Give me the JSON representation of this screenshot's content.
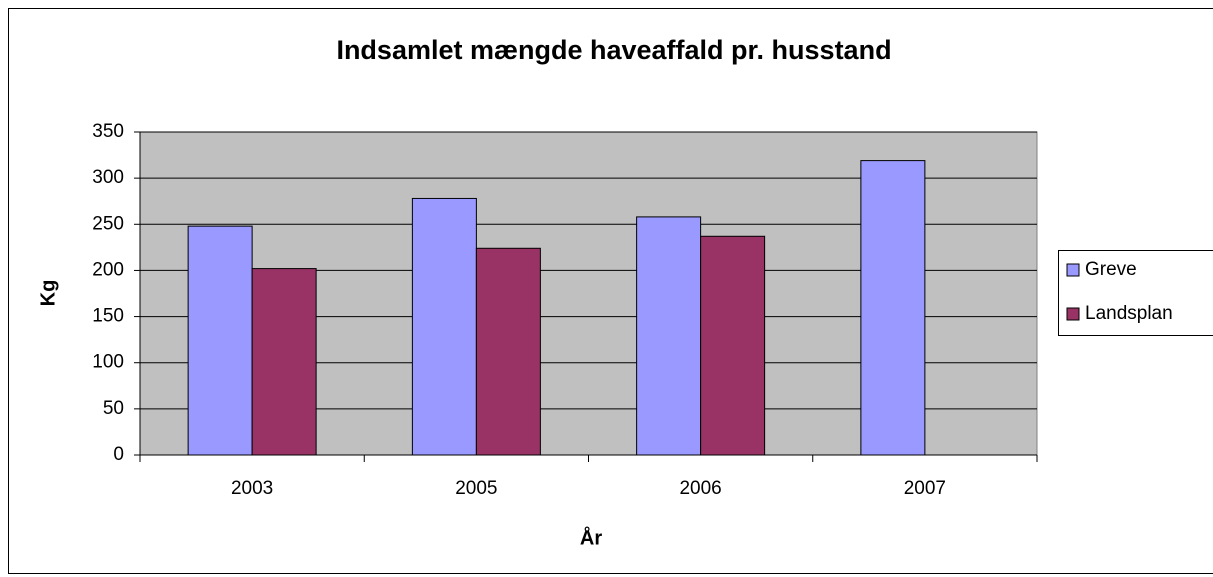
{
  "chart_data": {
    "type": "bar",
    "title": "Indsamlet mængde haveaffald pr. husstand",
    "x_label": "År",
    "y_label": "Kg",
    "categories": [
      "2003",
      "2005",
      "2006",
      "2007"
    ],
    "series": [
      {
        "name": "Greve",
        "color": "#9999ff",
        "values": [
          248,
          278,
          258,
          319
        ]
      },
      {
        "name": "Landsplan",
        "color": "#993366",
        "values": [
          202,
          224,
          237,
          null
        ]
      }
    ],
    "ylim": [
      0,
      350
    ],
    "yticks": [
      0,
      50,
      100,
      150,
      200,
      250,
      300,
      350
    ],
    "grid": true,
    "legend": "right"
  }
}
